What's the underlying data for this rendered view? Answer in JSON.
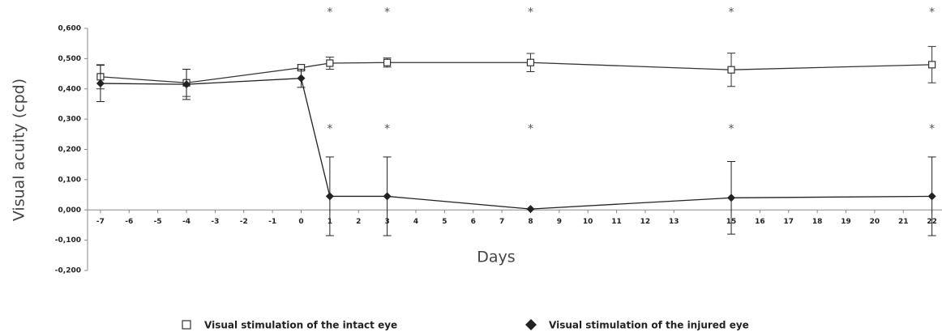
{
  "chart_data": {
    "type": "line",
    "ylabel": "Visual acuity (cpd)",
    "xlabel": "Days",
    "xlim": [
      -7.45,
      22.35
    ],
    "xticks": [
      -7,
      -6,
      -5,
      -4,
      -3,
      -2,
      -1,
      0,
      1,
      2,
      3,
      4,
      5,
      6,
      7,
      8,
      9,
      10,
      11,
      12,
      13,
      15,
      16,
      17,
      18,
      19,
      20,
      21,
      22
    ],
    "ylim": [
      -0.2,
      0.6
    ],
    "yticks": [
      {
        "value": -0.2,
        "label": "-0,200"
      },
      {
        "value": -0.1,
        "label": "-0,100"
      },
      {
        "value": 0,
        "label": "0,000"
      },
      {
        "value": 0.1,
        "label": "0,100"
      },
      {
        "value": 0.2,
        "label": "0,200"
      },
      {
        "value": 0.3,
        "label": "0,300"
      },
      {
        "value": 0.4,
        "label": "0,400"
      },
      {
        "value": 0.5,
        "label": "0,500"
      },
      {
        "value": 0.6,
        "label": "0,600"
      }
    ],
    "series": [
      {
        "name": "Visual stimulation of the intact eye",
        "marker": "square",
        "color": "#333333",
        "x": [
          -7,
          -4,
          0,
          1,
          3,
          8,
          15,
          22
        ],
        "values": [
          0.44,
          0.42,
          0.47,
          0.485,
          0.487,
          0.487,
          0.463,
          0.48
        ],
        "errors": [
          0.04,
          0.045,
          0.01,
          0.02,
          0.015,
          0.03,
          0.055,
          0.06
        ]
      },
      {
        "name": "Visual stimulation of the injured eye",
        "marker": "diamond",
        "color": "#222222",
        "x": [
          -7,
          -4,
          0,
          1,
          3,
          8,
          15,
          22
        ],
        "values": [
          0.418,
          0.415,
          0.435,
          0.045,
          0.045,
          0.003,
          0.04,
          0.045
        ],
        "errors": [
          0.06,
          0.05,
          0.03,
          0.13,
          0.13,
          0,
          0.12,
          0.13
        ]
      }
    ],
    "annotations": [
      {
        "text": "*",
        "x": 1,
        "y": 0.66
      },
      {
        "text": "*",
        "x": 3,
        "y": 0.66
      },
      {
        "text": "*",
        "x": 8,
        "y": 0.66
      },
      {
        "text": "*",
        "x": 15,
        "y": 0.66
      },
      {
        "text": "*",
        "x": 22,
        "y": 0.66
      },
      {
        "text": "*",
        "x": 1,
        "y": 0.275
      },
      {
        "text": "*",
        "x": 3,
        "y": 0.275
      },
      {
        "text": "*",
        "x": 8,
        "y": 0.275
      },
      {
        "text": "*",
        "x": 15,
        "y": 0.275
      },
      {
        "text": "*",
        "x": 22,
        "y": 0.275
      }
    ]
  }
}
